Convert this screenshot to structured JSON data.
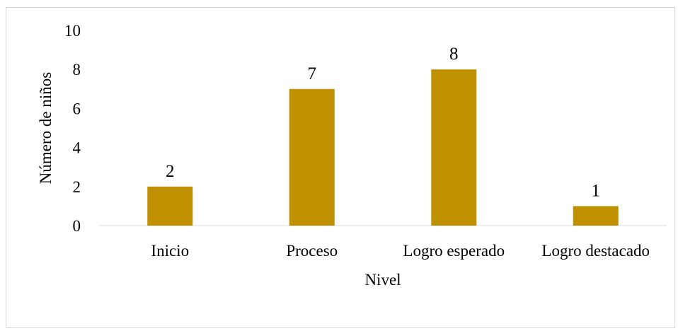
{
  "chart_data": {
    "type": "bar",
    "categories": [
      "Inicio",
      "Proceso",
      "Logro esperado",
      "Logro destacado"
    ],
    "values": [
      2,
      7,
      8,
      1
    ],
    "data_labels": [
      "2",
      "7",
      "8",
      "1"
    ],
    "title": "",
    "xlabel": "Nivel",
    "ylabel": "Número de niños",
    "ylim": [
      0,
      10
    ],
    "yticks": [
      "0",
      "2",
      "4",
      "6",
      "8",
      "10"
    ],
    "grid": false,
    "legend": "none",
    "bar_color": "#BF9000"
  }
}
